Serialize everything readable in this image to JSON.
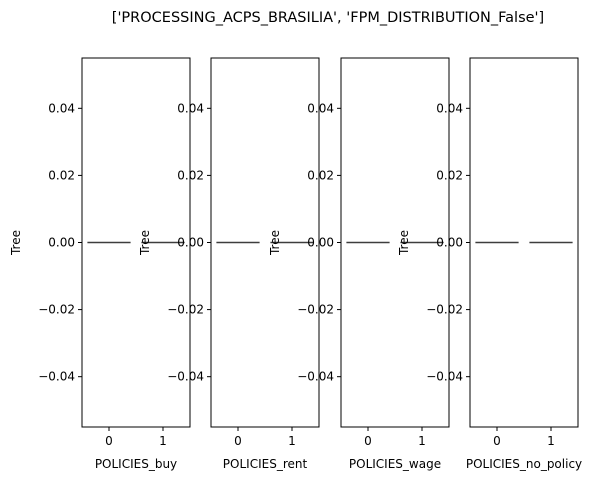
{
  "chart_data": {
    "type": "box",
    "title": "['PROCESSING_ACPS_BRASILIA', 'FPM_DISTRIBUTION_False']",
    "colors": {
      "median": "#3d3d3d",
      "frame": "#000000",
      "background": "#ffffff"
    },
    "shared_y": {
      "ylabel": "Tree",
      "ylim": [
        -0.055,
        0.055
      ],
      "ticks": [
        0.04,
        0.02,
        0.0,
        -0.02,
        -0.04
      ],
      "tick_labels": [
        "0.04",
        "0.02",
        "0.00",
        "−0.02",
        "−0.04"
      ]
    },
    "panels": [
      {
        "xlabel": "POLICIES_buy",
        "show_ylabel": true,
        "categories": [
          "0",
          "1"
        ],
        "values": [
          0.0,
          0.0
        ]
      },
      {
        "xlabel": "POLICIES_rent",
        "show_ylabel": true,
        "categories": [
          "0",
          "1"
        ],
        "values": [
          0.0,
          0.0
        ]
      },
      {
        "xlabel": "POLICIES_wage",
        "show_ylabel": true,
        "categories": [
          "0",
          "1"
        ],
        "values": [
          0.0,
          0.0
        ]
      },
      {
        "xlabel": "POLICIES_no_policy",
        "show_ylabel": true,
        "categories": [
          "0",
          "1"
        ],
        "values": [
          0.0,
          0.0
        ]
      }
    ]
  }
}
